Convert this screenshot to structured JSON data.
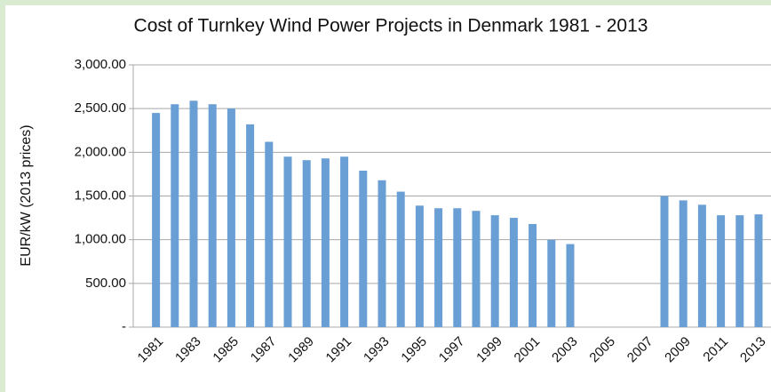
{
  "chart_data": {
    "type": "bar",
    "title": "Cost of Turnkey Wind Power Projects in Denmark 1981 - 2013",
    "y_label": "EUR/kW (2013 prices)",
    "categories": [
      "1981",
      null,
      "1983",
      null,
      "1985",
      null,
      "1987",
      null,
      "1989",
      null,
      "1991",
      null,
      "1993",
      null,
      "1995",
      null,
      "1997",
      null,
      "1999",
      null,
      "2001",
      null,
      "2003",
      null,
      "2005",
      null,
      "2007",
      null,
      "2009",
      null,
      "2011",
      null,
      "2013"
    ],
    "values": [
      2450,
      2550,
      2590,
      2550,
      2500,
      2320,
      2120,
      1950,
      1910,
      1930,
      1950,
      1790,
      1680,
      1550,
      1390,
      1360,
      1360,
      1330,
      1280,
      1250,
      1180,
      1000,
      950,
      null,
      null,
      null,
      null,
      1500,
      1450,
      1400,
      1280,
      1280,
      1290
    ],
    "color": "#6a9fd5",
    "ylim": [
      0,
      3000
    ],
    "yticks": [
      {
        "value": 0,
        "label": "-"
      },
      {
        "value": 500,
        "label": "500.00"
      },
      {
        "value": 1000,
        "label": "1,000.00"
      },
      {
        "value": 1500,
        "label": "1,500.00"
      },
      {
        "value": 2000,
        "label": "2,000.00"
      },
      {
        "value": 2500,
        "label": "2,500.00"
      },
      {
        "value": 3000,
        "label": "3,000.00"
      }
    ],
    "grid": true
  }
}
